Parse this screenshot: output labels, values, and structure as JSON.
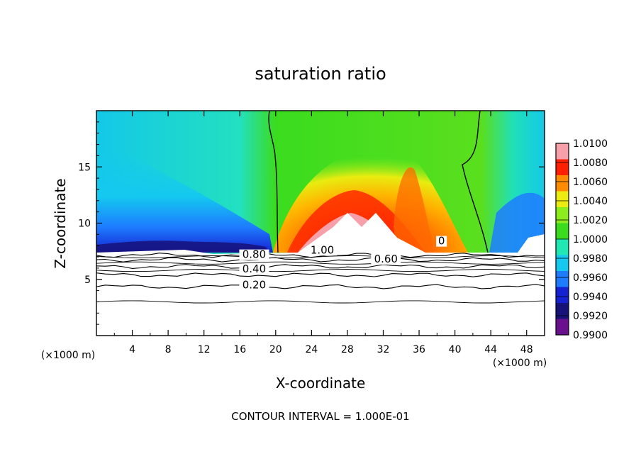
{
  "chart_data": {
    "type": "heatmap",
    "title": "saturation ratio",
    "xlabel": "X-coordinate",
    "ylabel": "Z-coordinate",
    "x_unit_left": "(×1000 m)",
    "x_unit_right": "(×1000 m)",
    "xlim": [
      0,
      50
    ],
    "ylim": [
      0,
      20
    ],
    "x_ticks": [
      4,
      8,
      12,
      16,
      20,
      24,
      28,
      32,
      36,
      40,
      44,
      48
    ],
    "y_ticks": [
      5,
      10,
      15
    ],
    "footer": "CONTOUR INTERVAL = 1.000E-01",
    "colorbar": {
      "levels": [
        "1.0100",
        "1.0080",
        "1.0060",
        "1.0040",
        "1.0020",
        "1.0000",
        "0.9980",
        "0.9960",
        "0.9940",
        "0.9920",
        "0.9900"
      ],
      "colors": [
        "#6a0f8e",
        "#16127a",
        "#1422d2",
        "#1e7cff",
        "#14c8f0",
        "#20e8b4",
        "#3bdc1e",
        "#8ced1c",
        "#ecec10",
        "#ff8c00",
        "#ff2000",
        "#f8a0aa"
      ]
    },
    "contour_labels": [
      {
        "text": "0.80",
        "x": 17.6,
        "y": 6.9
      },
      {
        "text": "1.00",
        "x": 25.2,
        "y": 7.3
      },
      {
        "text": "0.60",
        "x": 32.3,
        "y": 6.5
      },
      {
        "text": "0.40",
        "x": 17.6,
        "y": 5.6
      },
      {
        "text": "0.20",
        "x": 17.6,
        "y": 4.2
      },
      {
        "text": "0",
        "x": 38.5,
        "y": 8.1
      }
    ],
    "contour_lines": [
      {
        "level": 0.2,
        "z": 4.35
      },
      {
        "level": 0.4,
        "z": 5.4
      },
      {
        "level": 0.6,
        "z": 6.15
      },
      {
        "level": 0.8,
        "z": 6.75
      },
      {
        "level": 1.0,
        "z": 7.15
      }
    ]
  }
}
